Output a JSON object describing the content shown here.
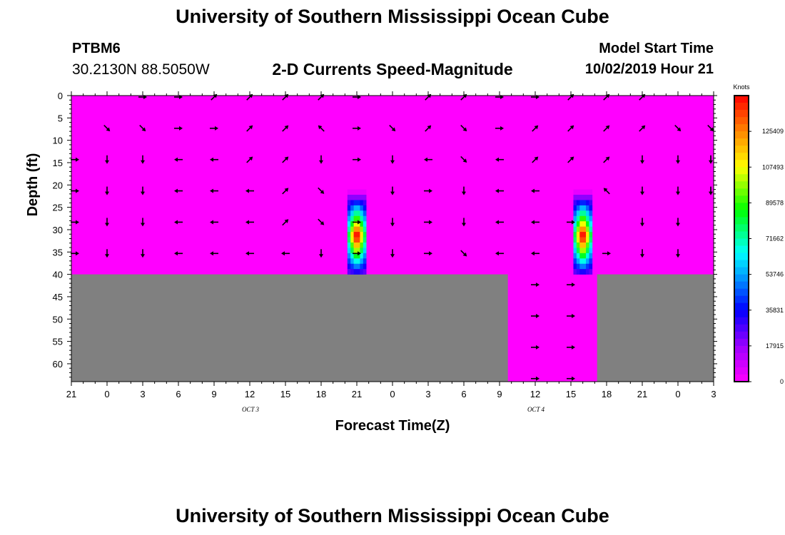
{
  "header": {
    "title": "University of Southern Mississippi Ocean Cube",
    "station_id": "PTBM6",
    "station_coords": "30.2130N 88.5050W",
    "subtitle": "2-D Currents Speed-Magnitude",
    "start_label": "Model Start Time",
    "start_value": "10/02/2019 Hour 21"
  },
  "footer": {
    "title": "University of Southern Mississippi Ocean Cube"
  },
  "colors": {
    "background": "#ff00ff",
    "land": "#808080",
    "arrow": "#000000"
  },
  "chart_data": {
    "type": "heatmap",
    "title": "2-D Currents Speed-Magnitude",
    "xlabel": "Forecast Time(Z)",
    "ylabel": "Depth (ft)",
    "x_tick_labels": [
      "21",
      "0",
      "3",
      "6",
      "9",
      "12",
      "15",
      "18",
      "21",
      "0",
      "3",
      "6",
      "9",
      "12",
      "15",
      "18",
      "21",
      "0",
      "3"
    ],
    "date_labels": [
      {
        "text": "OCT 3",
        "hour_index": 5
      },
      {
        "text": "OCT 4",
        "hour_index": 13
      }
    ],
    "x_range_hours": [
      0,
      54
    ],
    "y_ticks": [
      0,
      5,
      10,
      15,
      20,
      25,
      30,
      35,
      40,
      45,
      50,
      55,
      60
    ],
    "ylim": [
      0,
      64
    ],
    "colorbar": {
      "label": "Knots",
      "ticks": [
        "0",
        "17915",
        "35831",
        "53746",
        "71662",
        "89578",
        "107493",
        "125409"
      ],
      "max": 143324
    },
    "land_segments": [
      {
        "from_hour": 0,
        "to_hour": 36.7,
        "below_depth": 40
      },
      {
        "from_hour": 44.2,
        "to_hour": 54,
        "below_depth": 40
      }
    ],
    "hotspots": [
      {
        "center_hour": 24,
        "depth_top": 21,
        "depth_bottom": 40,
        "peak_knots": 143000
      },
      {
        "center_hour": 43,
        "depth_top": 21,
        "depth_bottom": 40,
        "peak_knots": 143000
      }
    ],
    "arrow_hours": [
      0,
      3,
      6,
      9,
      12,
      15,
      18,
      21,
      24,
      27,
      30,
      33,
      36,
      39,
      42,
      45,
      48,
      51,
      54
    ],
    "arrow_rows": [
      {
        "depth": 0,
        "angles": [
          null,
          null,
          180,
          180,
          225,
          225,
          225,
          225,
          180,
          null,
          225,
          225,
          180,
          180,
          225,
          225,
          225,
          null,
          null
        ]
      },
      {
        "depth": 7,
        "angles": [
          null,
          135,
          135,
          180,
          180,
          225,
          225,
          315,
          180,
          135,
          225,
          135,
          180,
          225,
          225,
          225,
          225,
          135,
          135
        ]
      },
      {
        "depth": 14,
        "angles": [
          180,
          90,
          90,
          0,
          0,
          225,
          225,
          90,
          180,
          90,
          0,
          135,
          0,
          225,
          225,
          225,
          90,
          90,
          90
        ]
      },
      {
        "depth": 21,
        "angles": [
          180,
          90,
          90,
          0,
          0,
          0,
          225,
          135,
          null,
          90,
          180,
          90,
          0,
          0,
          null,
          315,
          90,
          90,
          90
        ]
      },
      {
        "depth": 28,
        "angles": [
          180,
          90,
          90,
          0,
          0,
          0,
          225,
          135,
          180,
          90,
          180,
          90,
          0,
          0,
          180,
          null,
          90,
          90,
          null
        ]
      },
      {
        "depth": 35,
        "angles": [
          180,
          90,
          90,
          0,
          0,
          0,
          0,
          90,
          180,
          90,
          180,
          135,
          0,
          0,
          null,
          180,
          90,
          90,
          null
        ]
      },
      {
        "depth": 42,
        "angles": [
          null,
          null,
          null,
          null,
          null,
          null,
          null,
          null,
          null,
          null,
          null,
          null,
          null,
          180,
          180,
          null,
          null,
          null,
          null
        ]
      },
      {
        "depth": 49,
        "angles": [
          null,
          null,
          null,
          null,
          null,
          null,
          null,
          null,
          null,
          null,
          null,
          null,
          null,
          180,
          180,
          null,
          null,
          null,
          null
        ]
      },
      {
        "depth": 56,
        "angles": [
          null,
          null,
          null,
          null,
          null,
          null,
          null,
          null,
          null,
          null,
          null,
          null,
          null,
          180,
          180,
          null,
          null,
          null,
          null
        ]
      },
      {
        "depth": 63,
        "angles": [
          null,
          null,
          null,
          null,
          null,
          null,
          null,
          null,
          null,
          null,
          null,
          null,
          null,
          180,
          180,
          null,
          null,
          null,
          null
        ]
      }
    ]
  }
}
